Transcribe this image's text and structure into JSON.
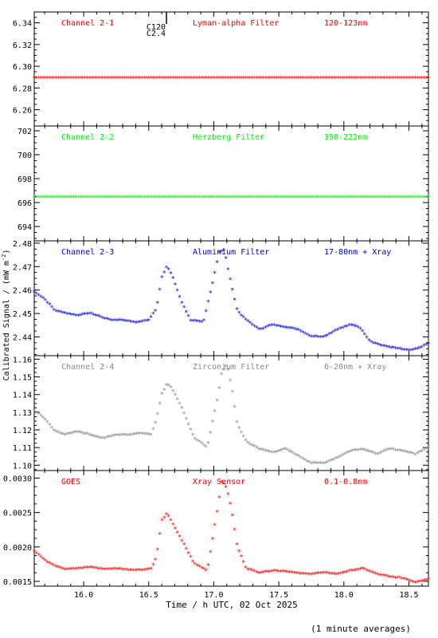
{
  "x_axis": {
    "label": "Time / h UTC, 02 Oct 2025",
    "range": [
      15.62,
      18.65
    ],
    "ticks": [
      "16.0",
      "16.5",
      "17.0",
      "17.5",
      "18.0",
      "18.5"
    ]
  },
  "y_axis_label": "Calibrated Signal / (mW m",
  "y_axis_label_sup": "-2",
  "y_axis_label_end": ")",
  "footer_note": "(1 minute averages)",
  "top_marker": {
    "line1": "C120",
    "line2": "C2.4",
    "x": 16.63
  },
  "chart_data": [
    {
      "type": "scatter",
      "channel": "Channel 2-1",
      "filter": "Lyman-alpha Filter",
      "band": "120-123nm",
      "color": "#ee0000",
      "ylim": [
        6.245,
        6.35
      ],
      "yticks": [
        "6.26",
        "6.28",
        "6.30",
        "6.32",
        "6.34"
      ],
      "profile": "flat",
      "base": 6.289
    },
    {
      "type": "scatter",
      "channel": "Channel 2-2",
      "filter": "Herzberg Filter",
      "band": "190-222nm",
      "color": "#00ee00",
      "ylim": [
        692.8,
        702.4
      ],
      "yticks": [
        "694",
        "696",
        "698",
        "700",
        "702"
      ],
      "profile": "flat",
      "base": 696.45
    },
    {
      "type": "scatter",
      "channel": "Channel 2-3",
      "filter": "Aluminium Filter",
      "band": "17-80nm + Xray",
      "color": "#0000cc",
      "ylim": [
        2.432,
        2.481
      ],
      "yticks": [
        "2.44",
        "2.45",
        "2.46",
        "2.47",
        "2.48"
      ],
      "profile": "flares",
      "x": [
        15.62,
        15.7,
        15.78,
        15.86,
        15.95,
        16.05,
        16.15,
        16.22,
        16.3,
        16.4,
        16.5,
        16.56,
        16.6,
        16.64,
        16.68,
        16.75,
        16.82,
        16.92,
        17.0,
        17.04,
        17.08,
        17.12,
        17.18,
        17.25,
        17.35,
        17.45,
        17.55,
        17.65,
        17.75,
        17.85,
        17.95,
        18.05,
        18.12,
        18.2,
        18.3,
        18.4,
        18.5,
        18.58,
        18.65
      ],
      "y": [
        2.459,
        2.456,
        2.451,
        2.45,
        2.449,
        2.45,
        2.448,
        2.447,
        2.447,
        2.446,
        2.447,
        2.452,
        2.465,
        2.47,
        2.466,
        2.455,
        2.447,
        2.446,
        2.465,
        2.476,
        2.477,
        2.466,
        2.451,
        2.447,
        2.443,
        2.445,
        2.444,
        2.443,
        2.44,
        2.44,
        2.443,
        2.445,
        2.444,
        2.438,
        2.436,
        2.435,
        2.434,
        2.435,
        2.437
      ]
    },
    {
      "type": "scatter",
      "channel": "Channel 2-4",
      "filter": "Zirconium Filter",
      "band": "6-20nm + Xray",
      "color": "#888888",
      "ylim": [
        1.097,
        1.162
      ],
      "yticks": [
        "1.10",
        "1.11",
        "1.12",
        "1.13",
        "1.14",
        "1.15",
        "1.16"
      ],
      "profile": "flares",
      "x": [
        15.62,
        15.7,
        15.78,
        15.86,
        15.95,
        16.05,
        16.15,
        16.25,
        16.35,
        16.45,
        16.52,
        16.56,
        16.6,
        16.64,
        16.68,
        16.75,
        16.85,
        16.95,
        17.03,
        17.06,
        17.1,
        17.14,
        17.18,
        17.25,
        17.35,
        17.45,
        17.55,
        17.65,
        17.75,
        17.85,
        17.95,
        18.05,
        18.15,
        18.25,
        18.35,
        18.45,
        18.55,
        18.65
      ],
      "y": [
        1.131,
        1.126,
        1.119,
        1.117,
        1.119,
        1.117,
        1.115,
        1.117,
        1.117,
        1.118,
        1.117,
        1.126,
        1.14,
        1.146,
        1.143,
        1.133,
        1.115,
        1.11,
        1.138,
        1.152,
        1.157,
        1.143,
        1.123,
        1.113,
        1.109,
        1.107,
        1.109,
        1.105,
        1.101,
        1.101,
        1.104,
        1.108,
        1.109,
        1.106,
        1.109,
        1.108,
        1.106,
        1.11
      ]
    },
    {
      "type": "scatter",
      "channel": "GOES",
      "filter": "Xray Sensor",
      "band": "0.1-0.8nm",
      "color": "#ee0000",
      "ylim": [
        0.00143,
        0.00311
      ],
      "yticks": [
        "0.0015",
        "0.0020",
        "0.0025",
        "0.0030"
      ],
      "profile": "flares",
      "x": [
        15.62,
        15.7,
        15.78,
        15.86,
        15.95,
        16.05,
        16.15,
        16.25,
        16.35,
        16.45,
        16.52,
        16.56,
        16.6,
        16.64,
        16.68,
        16.75,
        16.85,
        16.95,
        17.02,
        17.06,
        17.1,
        17.14,
        17.18,
        17.25,
        17.35,
        17.45,
        17.55,
        17.65,
        17.75,
        17.85,
        17.95,
        18.05,
        18.15,
        18.25,
        18.35,
        18.45,
        18.55,
        18.65
      ],
      "y": [
        0.00194,
        0.0018,
        0.00172,
        0.00167,
        0.00168,
        0.0017,
        0.00167,
        0.00168,
        0.00166,
        0.00166,
        0.00168,
        0.00185,
        0.00238,
        0.00248,
        0.00235,
        0.0021,
        0.00175,
        0.00165,
        0.00245,
        0.00295,
        0.00285,
        0.0025,
        0.002,
        0.00168,
        0.00162,
        0.00165,
        0.00164,
        0.00161,
        0.0016,
        0.00162,
        0.0016,
        0.00165,
        0.00168,
        0.0016,
        0.00156,
        0.00154,
        0.00148,
        0.00153
      ]
    }
  ]
}
